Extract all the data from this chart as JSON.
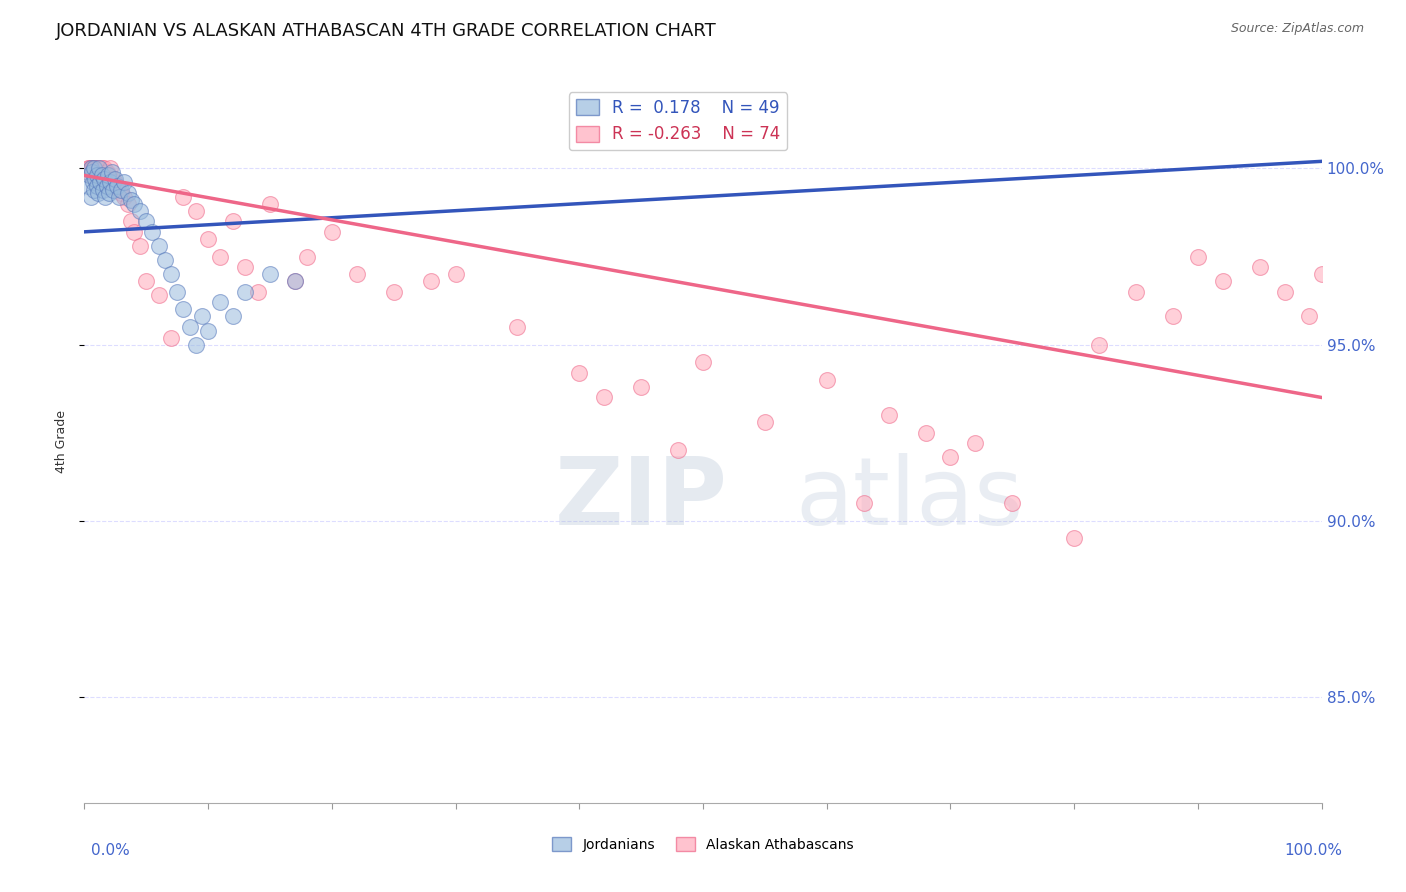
{
  "title": "JORDANIAN VS ALASKAN ATHABASCAN 4TH GRADE CORRELATION CHART",
  "source": "Source: ZipAtlas.com",
  "ylabel": "4th Grade",
  "ylabel_right_ticks": [
    85.0,
    90.0,
    95.0,
    100.0
  ],
  "ylabel_right_labels": [
    "85.0%",
    "90.0%",
    "95.0%",
    "100.0%"
  ],
  "xlim": [
    0.0,
    100.0
  ],
  "ylim": [
    82.0,
    102.5
  ],
  "legend_blue_label": "Jordanians",
  "legend_pink_label": "Alaskan Athabascans",
  "R_blue": 0.178,
  "N_blue": 49,
  "R_pink": -0.263,
  "N_pink": 74,
  "blue_color": "#99BBDD",
  "pink_color": "#FFAABB",
  "blue_edge_color": "#5577BB",
  "pink_edge_color": "#EE6688",
  "blue_line_color": "#3355BB",
  "pink_line_color": "#EE6688",
  "background_color": "#FFFFFF",
  "watermark_zip": "ZIP",
  "watermark_atlas": "atlas",
  "grid_color": "#DDDDFF",
  "blue_scatter_x": [
    0.3,
    0.4,
    0.5,
    0.5,
    0.6,
    0.7,
    0.8,
    0.8,
    0.9,
    1.0,
    1.0,
    1.1,
    1.2,
    1.3,
    1.4,
    1.5,
    1.6,
    1.7,
    1.8,
    1.9,
    2.0,
    2.1,
    2.2,
    2.3,
    2.5,
    2.6,
    2.8,
    3.0,
    3.2,
    3.5,
    3.8,
    4.0,
    4.5,
    5.0,
    5.5,
    6.0,
    6.5,
    7.0,
    7.5,
    8.0,
    8.5,
    9.0,
    9.5,
    10.0,
    11.0,
    12.0,
    13.0,
    15.0,
    17.0
  ],
  "blue_scatter_y": [
    99.5,
    99.8,
    100.0,
    99.2,
    99.9,
    99.6,
    100.0,
    99.4,
    99.7,
    99.8,
    99.5,
    99.3,
    100.0,
    99.6,
    99.8,
    99.4,
    99.7,
    99.2,
    99.5,
    99.8,
    99.3,
    99.6,
    99.9,
    99.4,
    99.7,
    99.5,
    99.2,
    99.4,
    99.6,
    99.3,
    99.1,
    99.0,
    98.8,
    98.5,
    98.2,
    97.8,
    97.4,
    97.0,
    96.5,
    96.0,
    95.5,
    95.0,
    95.8,
    95.4,
    96.2,
    95.8,
    96.5,
    97.0,
    96.8
  ],
  "pink_scatter_x": [
    0.3,
    0.4,
    0.5,
    0.5,
    0.6,
    0.7,
    0.8,
    0.9,
    1.0,
    1.0,
    1.1,
    1.2,
    1.3,
    1.4,
    1.5,
    1.6,
    1.7,
    1.8,
    1.9,
    2.0,
    2.1,
    2.2,
    2.3,
    2.5,
    2.6,
    2.8,
    3.0,
    3.2,
    3.5,
    3.8,
    4.0,
    4.5,
    5.0,
    6.0,
    7.0,
    8.0,
    9.0,
    10.0,
    11.0,
    12.0,
    13.0,
    14.0,
    15.0,
    17.0,
    18.0,
    20.0,
    22.0,
    25.0,
    28.0,
    30.0,
    35.0,
    40.0,
    42.0,
    45.0,
    48.0,
    50.0,
    55.0,
    60.0,
    63.0,
    65.0,
    68.0,
    70.0,
    72.0,
    75.0,
    80.0,
    82.0,
    85.0,
    88.0,
    90.0,
    92.0,
    95.0,
    97.0,
    99.0,
    100.0
  ],
  "pink_scatter_y": [
    100.0,
    100.0,
    100.0,
    99.8,
    100.0,
    100.0,
    99.9,
    100.0,
    100.0,
    99.7,
    100.0,
    99.8,
    99.9,
    100.0,
    99.8,
    100.0,
    99.6,
    99.9,
    99.7,
    99.8,
    100.0,
    99.5,
    99.7,
    99.6,
    99.5,
    99.4,
    99.3,
    99.2,
    99.0,
    98.5,
    98.2,
    97.8,
    96.8,
    96.4,
    95.2,
    99.2,
    98.8,
    98.0,
    97.5,
    98.5,
    97.2,
    96.5,
    99.0,
    96.8,
    97.5,
    98.2,
    97.0,
    96.5,
    96.8,
    97.0,
    95.5,
    94.2,
    93.5,
    93.8,
    92.0,
    94.5,
    92.8,
    94.0,
    90.5,
    93.0,
    92.5,
    91.8,
    92.2,
    90.5,
    89.5,
    95.0,
    96.5,
    95.8,
    97.5,
    96.8,
    97.2,
    96.5,
    95.8,
    97.0
  ]
}
